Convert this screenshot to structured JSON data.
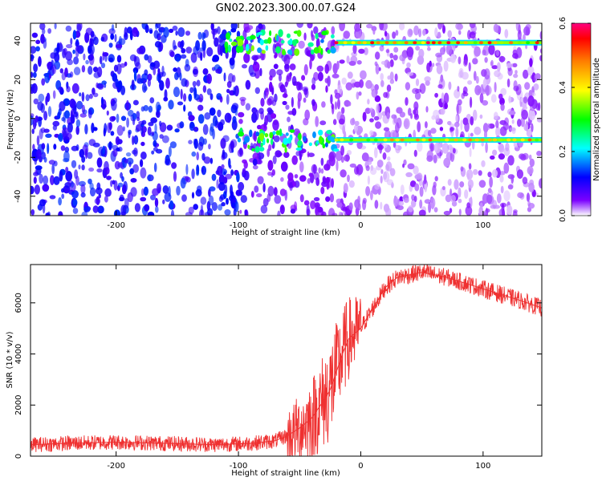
{
  "title": "GN02.2023.300.00.07.G24",
  "chart_data": [
    {
      "type": "heatmap",
      "xlabel": "Height of straight line (km)",
      "ylabel": "Frequency (Hz)",
      "xlim": [
        -270,
        148
      ],
      "ylim": [
        -50,
        49
      ],
      "x_ticks": [
        -200,
        -100,
        0,
        100
      ],
      "y_ticks": [
        40,
        20,
        0,
        -20,
        -40
      ],
      "grid": false,
      "colorbar": {
        "label": "Normalized spectral amplitude",
        "range": [
          0.0,
          0.6
        ],
        "ticks": [
          0.0,
          0.2,
          0.4,
          0.6
        ],
        "tick_labels": [
          "0.0",
          "0.2",
          "0.4",
          "0.6"
        ],
        "colors": [
          "#ffffff",
          "#7b00ff",
          "#0000ff",
          "#00ffff",
          "#00ff00",
          "#ffff00",
          "#ff8000",
          "#ff0000",
          "#ff0080"
        ]
      },
      "features": [
        {
          "frequency_hz": 39,
          "x_range_km": [
            -110,
            148
          ],
          "peak_amplitude": 0.6
        },
        {
          "frequency_hz": -11,
          "x_range_km": [
            -100,
            148
          ],
          "peak_amplitude": 0.5
        }
      ]
    },
    {
      "type": "line",
      "xlabel": "Height of straight line (km)",
      "ylabel": "SNR (10 * v/v)",
      "xlim": [
        -270,
        148
      ],
      "ylim": [
        0,
        7500
      ],
      "x_ticks": [
        -200,
        -100,
        0,
        100
      ],
      "y_ticks": [
        0,
        2000,
        4000,
        6000
      ],
      "grid": false,
      "color": "#ef3030",
      "x": [
        -270,
        -240,
        -200,
        -160,
        -120,
        -90,
        -70,
        -60,
        -50,
        -40,
        -30,
        -25,
        -20,
        -15,
        -10,
        0,
        10,
        20,
        30,
        50,
        70,
        90,
        110,
        130,
        148
      ],
      "y": [
        450,
        500,
        550,
        500,
        450,
        500,
        600,
        800,
        1100,
        1500,
        2200,
        2600,
        3300,
        4000,
        4600,
        5000,
        5800,
        6600,
        7000,
        7200,
        7000,
        6700,
        6400,
        6100,
        5800
      ]
    }
  ]
}
